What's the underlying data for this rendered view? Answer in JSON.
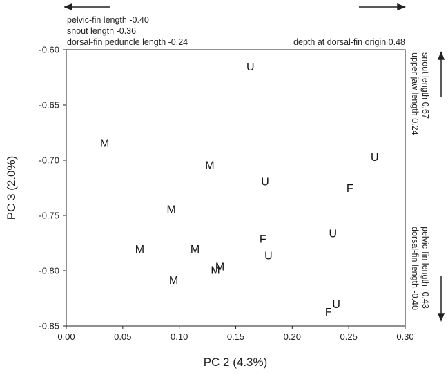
{
  "chart_data": {
    "type": "scatter",
    "xlabel": "PC 2 (4.3%)",
    "ylabel": "PC 3 (2.0%)",
    "xlim": [
      0.0,
      0.3
    ],
    "ylim": [
      -0.85,
      -0.6
    ],
    "x_ticks": [
      "0.00",
      "0.05",
      "0.10",
      "0.15",
      "0.20",
      "0.25",
      "0.30"
    ],
    "y_ticks": [
      "-0.60",
      "-0.65",
      "-0.70",
      "-0.75",
      "-0.80",
      "-0.85"
    ],
    "grid": false,
    "points": [
      {
        "label": "U",
        "x": 0.163,
        "y": -0.615
      },
      {
        "label": "M",
        "x": 0.034,
        "y": -0.684
      },
      {
        "label": "U",
        "x": 0.273,
        "y": -0.697
      },
      {
        "label": "M",
        "x": 0.127,
        "y": -0.704
      },
      {
        "label": "U",
        "x": 0.176,
        "y": -0.719
      },
      {
        "label": "F",
        "x": 0.251,
        "y": -0.725
      },
      {
        "label": "M",
        "x": 0.093,
        "y": -0.744
      },
      {
        "label": "U",
        "x": 0.236,
        "y": -0.766
      },
      {
        "label": "F",
        "x": 0.174,
        "y": -0.771
      },
      {
        "label": "M",
        "x": 0.065,
        "y": -0.78
      },
      {
        "label": "M",
        "x": 0.114,
        "y": -0.78
      },
      {
        "label": "U",
        "x": 0.179,
        "y": -0.786
      },
      {
        "label": "M",
        "x": 0.136,
        "y": -0.796
      },
      {
        "label": "M",
        "x": 0.132,
        "y": -0.799
      },
      {
        "label": "M",
        "x": 0.095,
        "y": -0.808
      },
      {
        "label": "U",
        "x": 0.239,
        "y": -0.83
      },
      {
        "label": "F",
        "x": 0.232,
        "y": -0.837
      }
    ],
    "annotations": {
      "top_left": [
        "pelvic-fin length -0.40",
        "snout length -0.36",
        "dorsal-fin peduncle length -0.24"
      ],
      "top_right": "depth at dorsal-fin origin 0.48",
      "right_top": [
        "snout length 0.67",
        "upper jaw length 0.24"
      ],
      "right_bottom": [
        "pelvic-fin length -0.43",
        "dorsal-fin length -0.40"
      ]
    }
  }
}
